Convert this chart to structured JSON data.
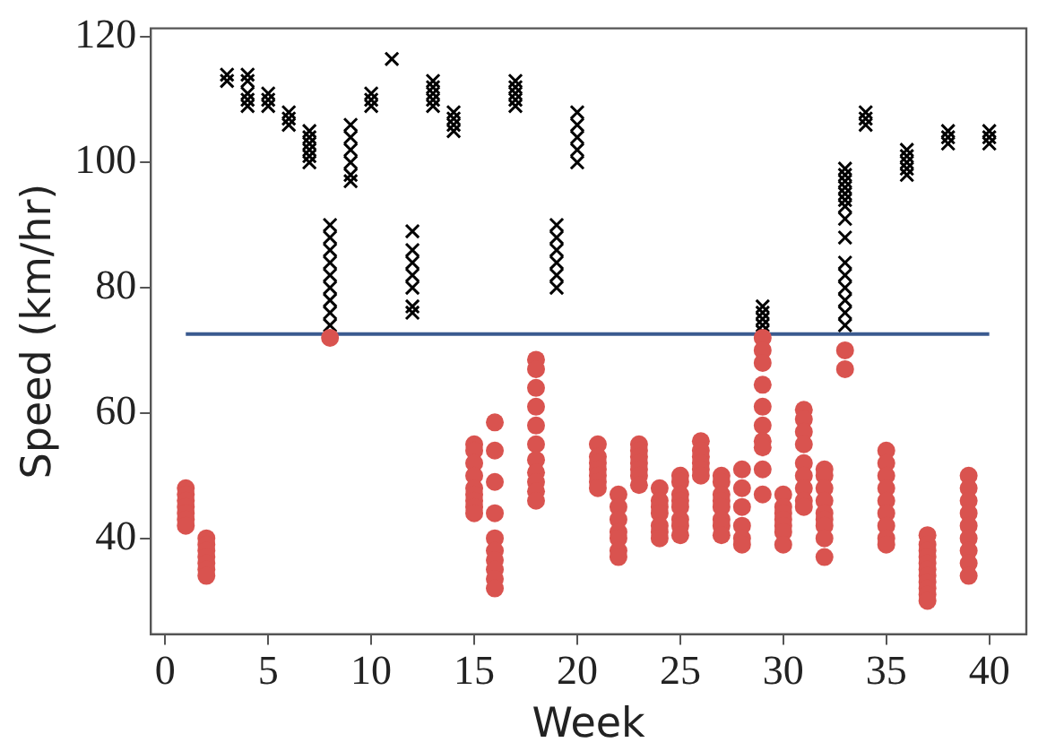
{
  "chart_data": {
    "type": "scatter",
    "xlabel": "Week",
    "ylabel": "Speed (km/hr)",
    "xlim": [
      -0.7,
      41.8
    ],
    "ylim": [
      24.7,
      121.4
    ],
    "xticks": [
      0,
      5,
      10,
      15,
      20,
      25,
      30,
      35,
      40
    ],
    "yticks": [
      40,
      60,
      80,
      100,
      120
    ],
    "grid": false,
    "legend": false,
    "series": [
      {
        "color": "#d9534f",
        "marker": "circle",
        "x": [
          1,
          1,
          1,
          1,
          1,
          1,
          1,
          2,
          2,
          2,
          2,
          2,
          2,
          2,
          8,
          15,
          15,
          15,
          15,
          15,
          15,
          15,
          15,
          15,
          16,
          16,
          16,
          16,
          16,
          16,
          16,
          16,
          16,
          16,
          18,
          18,
          18,
          18,
          18,
          18,
          18,
          18,
          18,
          18,
          18,
          21,
          21,
          21,
          21,
          21,
          21,
          21,
          22,
          22,
          22,
          22,
          22,
          22,
          22,
          23,
          23,
          23,
          23,
          23,
          23,
          23,
          24,
          24,
          24,
          24,
          24,
          24,
          24,
          25,
          25,
          25,
          25,
          25,
          25,
          25,
          25,
          26,
          26,
          26,
          26,
          26,
          26,
          27,
          27,
          27,
          27,
          27,
          27,
          27,
          27,
          28,
          28,
          28,
          28,
          28,
          28,
          29,
          29,
          29,
          29,
          29,
          29,
          29,
          29,
          29,
          29,
          30,
          30,
          30,
          30,
          30,
          30,
          30,
          31,
          31,
          31,
          31,
          31,
          31,
          31,
          31,
          31,
          32,
          32,
          32,
          32,
          32,
          32,
          32,
          32,
          32,
          33,
          33,
          35,
          35,
          35,
          35,
          35,
          35,
          35,
          35,
          35,
          37,
          37,
          37,
          37,
          37,
          37,
          37,
          37,
          37,
          37,
          37,
          39,
          39,
          39,
          39,
          39,
          39,
          39,
          39,
          39
        ],
        "values": [
          48,
          47,
          46,
          45,
          44,
          43,
          42,
          40,
          39,
          38,
          37,
          36,
          35,
          34,
          72,
          55,
          54,
          52,
          50,
          48,
          47,
          46,
          45,
          44,
          58.5,
          54,
          49,
          44,
          40,
          38,
          36.5,
          35,
          33.5,
          32,
          68.5,
          67,
          64,
          61,
          58,
          55,
          52.5,
          50.5,
          49,
          47.5,
          46,
          55,
          53,
          52,
          51,
          50,
          49,
          48,
          47,
          45,
          43,
          41,
          40,
          38,
          37,
          55,
          54,
          53,
          52,
          51,
          50,
          48.5,
          48,
          46,
          45,
          44,
          42,
          41,
          40,
          50,
          49,
          47,
          46,
          45,
          43,
          42,
          40.5,
          55.5,
          54,
          53,
          52,
          51,
          50,
          50,
          49,
          47,
          46,
          45,
          43,
          42,
          40.5,
          51,
          48,
          45,
          42,
          40,
          39,
          72,
          70,
          68,
          64.5,
          61,
          58,
          55.5,
          54.5,
          51,
          47,
          47,
          45,
          44,
          43,
          42,
          41,
          39,
          60.5,
          59,
          57,
          55,
          52,
          50,
          48,
          46,
          45,
          51,
          50,
          48,
          46,
          44,
          43,
          42,
          40,
          37,
          70,
          67,
          54,
          52,
          50,
          48,
          46,
          44,
          42,
          40,
          39,
          40.5,
          39,
          38,
          37,
          36,
          35,
          34,
          33,
          32,
          31,
          30,
          50,
          48,
          46,
          44,
          42,
          40,
          38,
          36,
          34
        ]
      },
      {
        "color": "#000000",
        "marker": "cross",
        "x": [
          3,
          3,
          4,
          4,
          4,
          4,
          4,
          5,
          5,
          5,
          6,
          6,
          6,
          7,
          7,
          7,
          7,
          7,
          7,
          8,
          8,
          8,
          8,
          8,
          8,
          8,
          8,
          8,
          9,
          9,
          9,
          9,
          9,
          9,
          10,
          10,
          10,
          11,
          12,
          12,
          12,
          12,
          12,
          12,
          12,
          13,
          13,
          13,
          13,
          13,
          14,
          14,
          14,
          14,
          17,
          17,
          17,
          17,
          17,
          19,
          19,
          19,
          19,
          19,
          19,
          20,
          20,
          20,
          20,
          20,
          29,
          29,
          29,
          29,
          29,
          33,
          33,
          33,
          33,
          33,
          33,
          33,
          33,
          33,
          33,
          33,
          33,
          33,
          33,
          33,
          34,
          34,
          34,
          36,
          36,
          36,
          36,
          36,
          38,
          38,
          38,
          40,
          40,
          40
        ],
        "values": [
          114,
          113,
          114,
          113,
          111,
          110,
          109,
          111,
          110,
          109,
          108,
          107,
          106,
          105,
          104,
          103,
          102,
          101,
          100,
          90,
          88,
          86,
          84,
          82,
          80,
          78,
          76,
          74,
          106,
          104,
          102,
          100,
          98,
          97,
          111,
          110,
          109,
          116.5,
          89,
          86,
          84,
          82,
          80,
          77,
          76,
          113,
          112,
          111,
          110,
          109,
          108,
          107,
          106,
          105,
          113,
          112,
          111,
          110,
          109,
          90,
          88,
          86,
          84,
          82,
          80,
          108,
          106,
          104,
          102,
          100,
          77,
          76,
          75,
          74,
          73,
          99,
          98,
          97,
          96,
          95,
          94,
          93,
          91,
          88,
          84,
          82,
          80,
          78,
          76,
          74,
          108,
          107,
          106,
          102,
          101,
          100,
          99,
          98,
          105,
          104,
          103,
          105,
          104,
          103
        ]
      },
      {
        "type": "line",
        "color": "#3a5a8f",
        "marker": "none",
        "x": [
          1,
          40
        ],
        "values": [
          72.6,
          72.6
        ]
      }
    ]
  }
}
